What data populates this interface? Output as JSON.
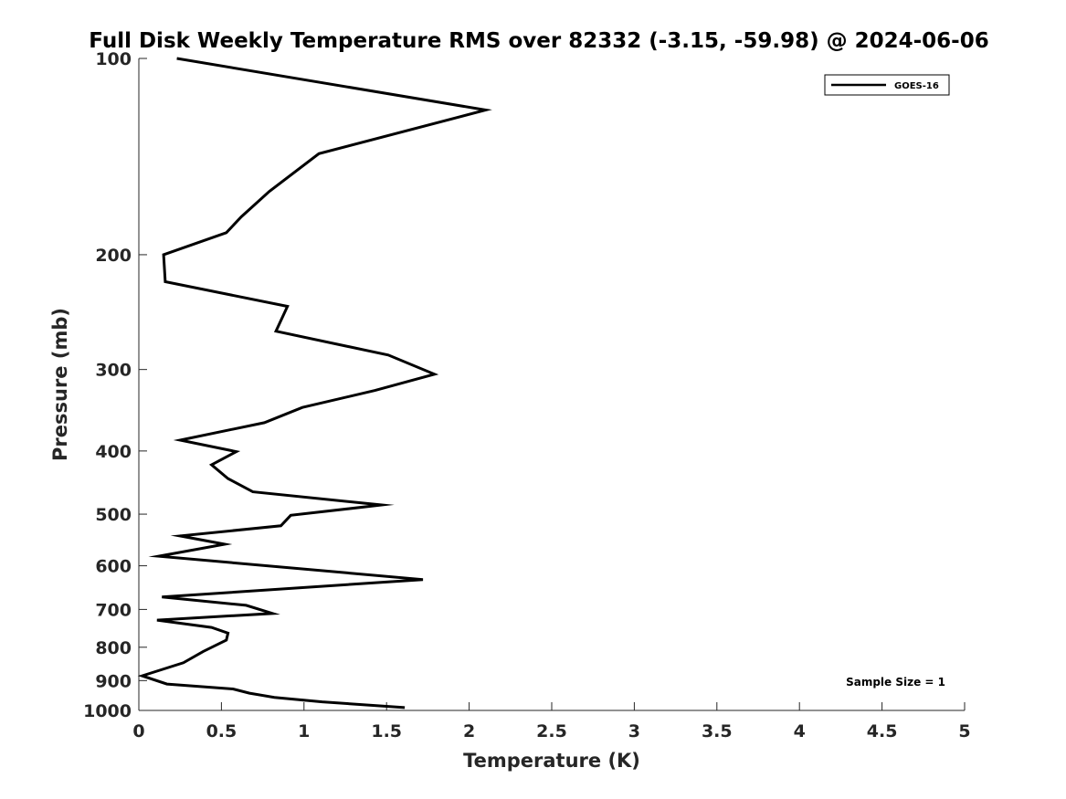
{
  "chart_data": {
    "type": "line",
    "title": "Full Disk Weekly Temperature RMS over 82332 (-3.15, -59.98) @ 2024-06-06",
    "xlabel": "Temperature (K)",
    "ylabel": "Pressure (mb)",
    "xlim": [
      0,
      5
    ],
    "ylim": [
      100,
      1000
    ],
    "y_scale": "log",
    "y_reversed": true,
    "x_ticks": [
      0,
      0.5,
      1,
      1.5,
      2,
      2.5,
      3,
      3.5,
      4,
      4.5,
      5
    ],
    "x_tick_labels": [
      "0",
      "0.5",
      "1",
      "1.5",
      "2",
      "2.5",
      "3",
      "3.5",
      "4",
      "4.5",
      "5"
    ],
    "y_ticks": [
      100,
      200,
      300,
      400,
      500,
      600,
      700,
      800,
      900,
      1000
    ],
    "y_tick_labels": [
      "100",
      "200",
      "300",
      "400",
      "500",
      "600",
      "700",
      "800",
      "900",
      "1000"
    ],
    "legend": {
      "position": "top-right",
      "entries": [
        "GOES-16"
      ]
    },
    "annotation": "Sample Size = 1",
    "series": [
      {
        "name": "GOES-16",
        "color": "#000000",
        "x": [
          0.23,
          2.1,
          1.09,
          0.79,
          0.62,
          0.53,
          0.15,
          0.16,
          0.9,
          0.83,
          1.51,
          1.79,
          1.43,
          0.99,
          0.76,
          0.25,
          0.59,
          0.44,
          0.54,
          0.69,
          1.47,
          0.92,
          0.86,
          0.25,
          0.52,
          0.12,
          1.72,
          0.14,
          0.65,
          0.81,
          0.11,
          0.44,
          0.54,
          0.53,
          0.39,
          0.27,
          0.02,
          0.17,
          0.57,
          0.67,
          0.82,
          1.11,
          1.61
        ],
        "y": [
          100,
          120,
          140,
          160,
          175,
          185,
          200,
          220,
          240,
          262,
          285,
          305,
          323,
          343,
          362,
          385,
          401,
          420,
          441,
          462,
          484,
          502,
          521,
          540,
          556,
          580,
          630,
          670,
          690,
          710,
          727,
          746,
          761,
          780,
          812,
          845,
          885,
          911,
          927,
          941,
          955,
          970,
          990
        ]
      }
    ]
  }
}
